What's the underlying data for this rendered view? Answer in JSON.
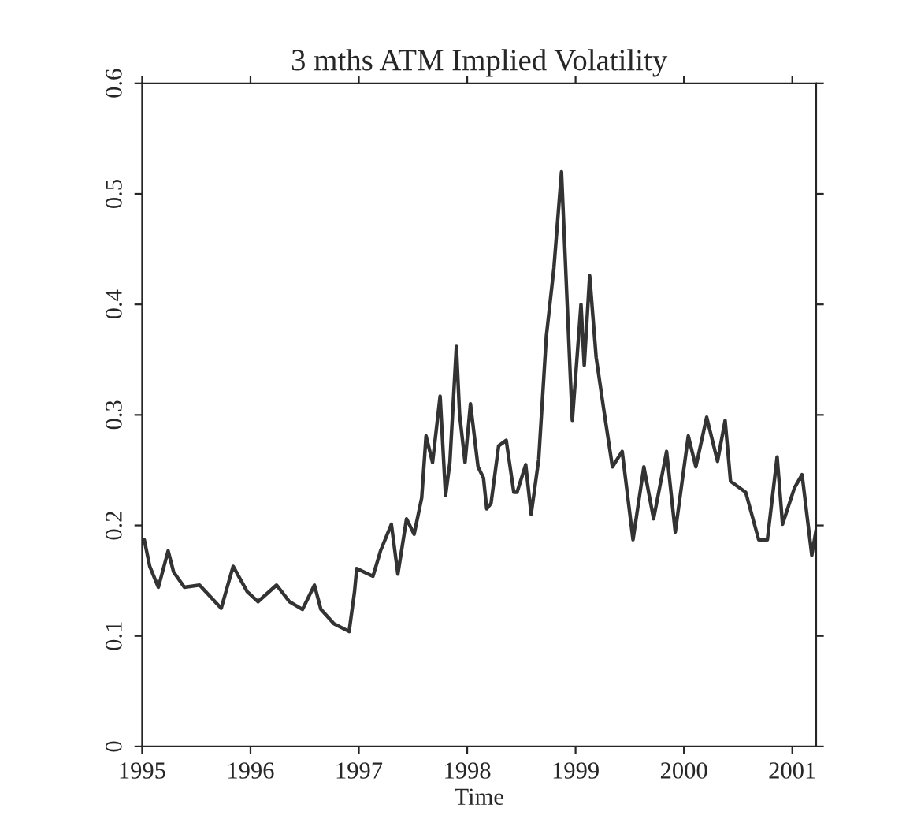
{
  "chart_data": {
    "type": "line",
    "title": "3 mths ATM Implied Volatility",
    "xlabel": "Time",
    "xlim": [
      1995,
      2001.22
    ],
    "xticks": [
      1995,
      1996,
      1997,
      1998,
      1999,
      2000,
      2001
    ],
    "ylim": [
      0,
      0.6
    ],
    "yticks": [
      0,
      0.1,
      0.2,
      0.3,
      0.4,
      0.5,
      0.6
    ],
    "grid": false,
    "marker": "none",
    "line_style": "solid",
    "series": [
      {
        "color": "#333333",
        "x": [
          1995.02,
          1995.07,
          1995.15,
          1995.24,
          1995.29,
          1995.39,
          1995.53,
          1995.73,
          1995.84,
          1995.97,
          1996.07,
          1996.24,
          1996.36,
          1996.48,
          1996.59,
          1996.65,
          1996.77,
          1996.91,
          1996.96,
          1996.98,
          1997.13,
          1997.2,
          1997.3,
          1997.36,
          1997.44,
          1997.51,
          1997.58,
          1997.62,
          1997.68,
          1997.75,
          1997.8,
          1997.84,
          1997.9,
          1997.93,
          1997.98,
          1998.03,
          1998.1,
          1998.15,
          1998.18,
          1998.22,
          1998.29,
          1998.36,
          1998.43,
          1998.46,
          1998.54,
          1998.59,
          1998.66,
          1998.73,
          1998.8,
          1998.87,
          1998.9,
          1998.95,
          1998.97,
          1999.05,
          1999.08,
          1999.13,
          1999.19,
          1999.26,
          1999.34,
          1999.43,
          1999.53,
          1999.63,
          1999.72,
          1999.84,
          1999.92,
          2000.04,
          2000.11,
          2000.21,
          2000.31,
          2000.38,
          2000.43,
          2000.57,
          2000.69,
          2000.77,
          2000.86,
          2000.91,
          2001.02,
          2001.09,
          2001.18,
          2001.22
        ],
        "values": [
          0.187,
          0.163,
          0.144,
          0.177,
          0.158,
          0.144,
          0.146,
          0.125,
          0.163,
          0.14,
          0.131,
          0.146,
          0.131,
          0.124,
          0.146,
          0.124,
          0.111,
          0.104,
          0.14,
          0.161,
          0.154,
          0.177,
          0.201,
          0.156,
          0.206,
          0.192,
          0.225,
          0.281,
          0.257,
          0.317,
          0.227,
          0.257,
          0.362,
          0.3,
          0.257,
          0.31,
          0.253,
          0.243,
          0.215,
          0.22,
          0.272,
          0.277,
          0.23,
          0.23,
          0.255,
          0.21,
          0.26,
          0.371,
          0.433,
          0.52,
          0.452,
          0.338,
          0.295,
          0.4,
          0.345,
          0.426,
          0.352,
          0.305,
          0.253,
          0.267,
          0.187,
          0.253,
          0.206,
          0.267,
          0.194,
          0.281,
          0.253,
          0.298,
          0.258,
          0.295,
          0.24,
          0.23,
          0.187,
          0.187,
          0.262,
          0.201,
          0.234,
          0.246,
          0.173,
          0.196
        ]
      }
    ]
  }
}
